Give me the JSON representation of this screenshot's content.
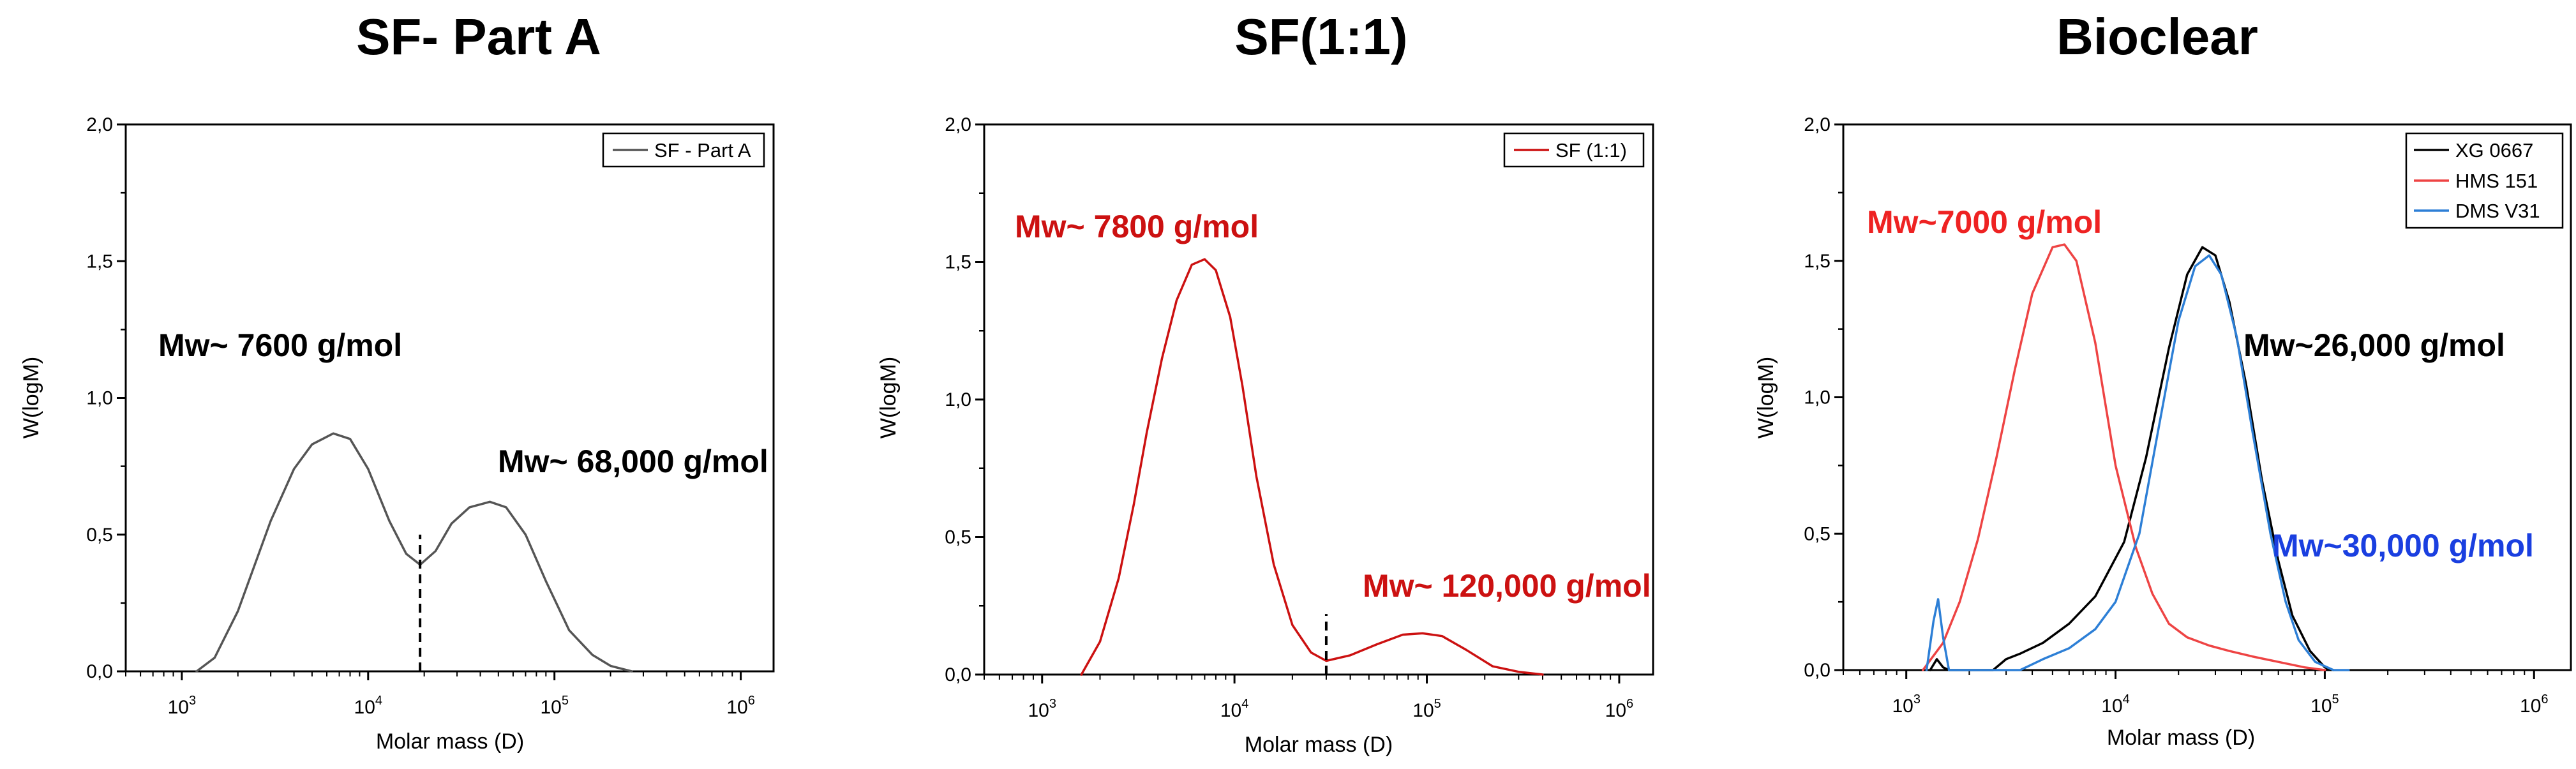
{
  "chart_data": [
    {
      "type": "line",
      "title": "SF- Part A",
      "xlabel": "Molar mass (D)",
      "ylabel": "W(logM)",
      "xscale": "log",
      "xlim": [
        500,
        1500000
      ],
      "ylim": [
        0,
        2
      ],
      "yticks": [
        "0,0",
        "0,5",
        "1,0",
        "1,5",
        "2,0"
      ],
      "xticks": [
        {
          "base": "10",
          "exp": "3"
        },
        {
          "base": "10",
          "exp": "4"
        },
        {
          "base": "10",
          "exp": "5"
        },
        {
          "base": "10",
          "exp": "6"
        }
      ],
      "legend_position": "top-right",
      "series": [
        {
          "name": "SF - Part A",
          "color": "#555555",
          "x": [
            1200,
            1500,
            2000,
            3000,
            4000,
            5000,
            6500,
            8000,
            10000,
            13000,
            16000,
            19000,
            23000,
            28000,
            35000,
            45000,
            55000,
            70000,
            90000,
            120000,
            160000,
            200000,
            260000
          ],
          "y": [
            0.0,
            0.05,
            0.22,
            0.55,
            0.74,
            0.83,
            0.87,
            0.85,
            0.74,
            0.55,
            0.43,
            0.39,
            0.44,
            0.54,
            0.6,
            0.62,
            0.6,
            0.5,
            0.33,
            0.15,
            0.06,
            0.02,
            0.0
          ]
        }
      ],
      "markers": [
        {
          "x": 19000,
          "y_from": 0.0,
          "y_to": 0.5
        }
      ],
      "annotations": [
        {
          "text": "Mw~ 7600 g/mol",
          "color": "#000000"
        },
        {
          "text": "Mw~ 68,000 g/mol",
          "color": "#000000"
        }
      ]
    },
    {
      "type": "line",
      "title": "SF(1:1)",
      "xlabel": "Molar mass (D)",
      "ylabel": "W(logM)",
      "xscale": "log",
      "xlim": [
        500,
        1500000
      ],
      "ylim": [
        0,
        2
      ],
      "yticks": [
        "0,0",
        "0,5",
        "1,0",
        "1,5",
        "2,0"
      ],
      "xticks": [
        {
          "base": "10",
          "exp": "3"
        },
        {
          "base": "10",
          "exp": "4"
        },
        {
          "base": "10",
          "exp": "5"
        },
        {
          "base": "10",
          "exp": "6"
        }
      ],
      "legend_position": "top-right",
      "series": [
        {
          "name": "SF (1:1)",
          "color": "#cc1111",
          "x": [
            1600,
            2000,
            2500,
            3000,
            3500,
            4200,
            5000,
            6000,
            7000,
            8000,
            9500,
            11000,
            13000,
            16000,
            20000,
            25000,
            30000,
            40000,
            55000,
            75000,
            95000,
            120000,
            160000,
            220000,
            300000,
            400000
          ],
          "y": [
            0.0,
            0.12,
            0.35,
            0.62,
            0.88,
            1.15,
            1.36,
            1.49,
            1.51,
            1.47,
            1.3,
            1.05,
            0.72,
            0.4,
            0.18,
            0.08,
            0.05,
            0.07,
            0.11,
            0.145,
            0.15,
            0.14,
            0.09,
            0.03,
            0.01,
            0.0
          ]
        }
      ],
      "markers": [
        {
          "x": 30000,
          "y_from": 0.0,
          "y_to": 0.22
        }
      ],
      "annotations": [
        {
          "text": "Mw~ 7800 g/mol",
          "color": "#cc1111"
        },
        {
          "text": "Mw~ 120,000 g/mol",
          "color": "#cc1111"
        }
      ]
    },
    {
      "type": "line",
      "title": "Bioclear",
      "xlabel": "Molar mass (D)",
      "ylabel": "W(logM)",
      "xscale": "log",
      "xlim": [
        500,
        1500000
      ],
      "ylim": [
        0,
        2
      ],
      "yticks": [
        "0,0",
        "0,5",
        "1,0",
        "1,5",
        "2,0"
      ],
      "xticks": [
        {
          "base": "10",
          "exp": "3"
        },
        {
          "base": "10",
          "exp": "4"
        },
        {
          "base": "10",
          "exp": "5"
        },
        {
          "base": "10",
          "exp": "6"
        }
      ],
      "legend_position": "top-right",
      "series": [
        {
          "name": "XG 0667",
          "color": "#000000",
          "x": [
            1300,
            1400,
            1500,
            1600,
            2600,
            3000,
            3500,
            4500,
            6000,
            8000,
            11000,
            14000,
            18000,
            22000,
            26000,
            30000,
            35000,
            42000,
            50000,
            60000,
            70000,
            85000,
            100000,
            110000
          ],
          "y": [
            0.0,
            0.04,
            0.01,
            0.0,
            0.0,
            0.04,
            0.06,
            0.1,
            0.17,
            0.27,
            0.47,
            0.78,
            1.18,
            1.45,
            1.55,
            1.52,
            1.35,
            1.05,
            0.7,
            0.4,
            0.2,
            0.07,
            0.01,
            0.0
          ]
        },
        {
          "name": "HMS 151",
          "color": "#ee4444",
          "x": [
            1200,
            1500,
            1800,
            2200,
            2700,
            3300,
            4000,
            5000,
            5700,
            6500,
            8000,
            10000,
            12500,
            15000,
            18000,
            22000,
            28000,
            35000,
            45000,
            60000,
            80000,
            100000
          ],
          "y": [
            0.0,
            0.1,
            0.25,
            0.48,
            0.78,
            1.1,
            1.38,
            1.55,
            1.56,
            1.5,
            1.2,
            0.75,
            0.45,
            0.28,
            0.17,
            0.12,
            0.09,
            0.07,
            0.05,
            0.03,
            0.01,
            0.0
          ]
        },
        {
          "name": "DMS V31",
          "color": "#2d7fd6",
          "x": [
            1250,
            1350,
            1420,
            1500,
            1600,
            3500,
            4500,
            6000,
            8000,
            10000,
            13000,
            16000,
            20000,
            24000,
            28000,
            32000,
            38000,
            45000,
            55000,
            65000,
            75000,
            90000,
            110000,
            130000
          ],
          "y": [
            0.0,
            0.18,
            0.26,
            0.12,
            0.0,
            0.0,
            0.04,
            0.08,
            0.15,
            0.25,
            0.5,
            0.88,
            1.28,
            1.48,
            1.52,
            1.45,
            1.22,
            0.88,
            0.5,
            0.25,
            0.11,
            0.03,
            0.0,
            0.0
          ]
        }
      ],
      "markers": [],
      "annotations": [
        {
          "text": "Mw~7000 g/mol",
          "color": "#ee2222"
        },
        {
          "text": "Mw~26,000 g/mol",
          "color": "#000000"
        },
        {
          "text": "Mw~30,000 g/mol",
          "color": "#1a3fe0"
        }
      ]
    }
  ]
}
